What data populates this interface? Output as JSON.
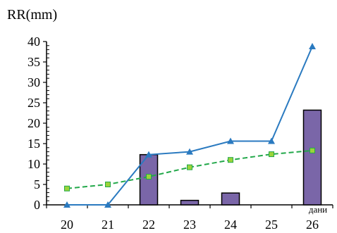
{
  "chart_data": {
    "type": "bar",
    "ylabel": "RR(mm)",
    "xlabel": "дани",
    "categories": [
      "20",
      "21",
      "22",
      "23",
      "24",
      "25",
      "26"
    ],
    "ylim": [
      0,
      40
    ],
    "yticks": [
      "0",
      "5",
      "10",
      "15",
      "20",
      "25",
      "30",
      "35",
      "40"
    ],
    "grid": false,
    "legend": "none",
    "series": [
      {
        "type": "bar",
        "values": [
          0,
          0,
          12.3,
          1.1,
          2.9,
          0,
          23.2
        ],
        "color": "#7a66a8"
      },
      {
        "type": "line",
        "values": [
          0,
          0,
          12.3,
          13.0,
          15.6,
          15.6,
          38.8
        ],
        "color": "#2a7ac0",
        "marker": "triangle"
      },
      {
        "type": "line",
        "values": [
          4.0,
          5.0,
          6.9,
          9.2,
          11.0,
          12.4,
          13.3
        ],
        "color": "#22a84a",
        "marker": "square",
        "dashed": true
      }
    ]
  }
}
